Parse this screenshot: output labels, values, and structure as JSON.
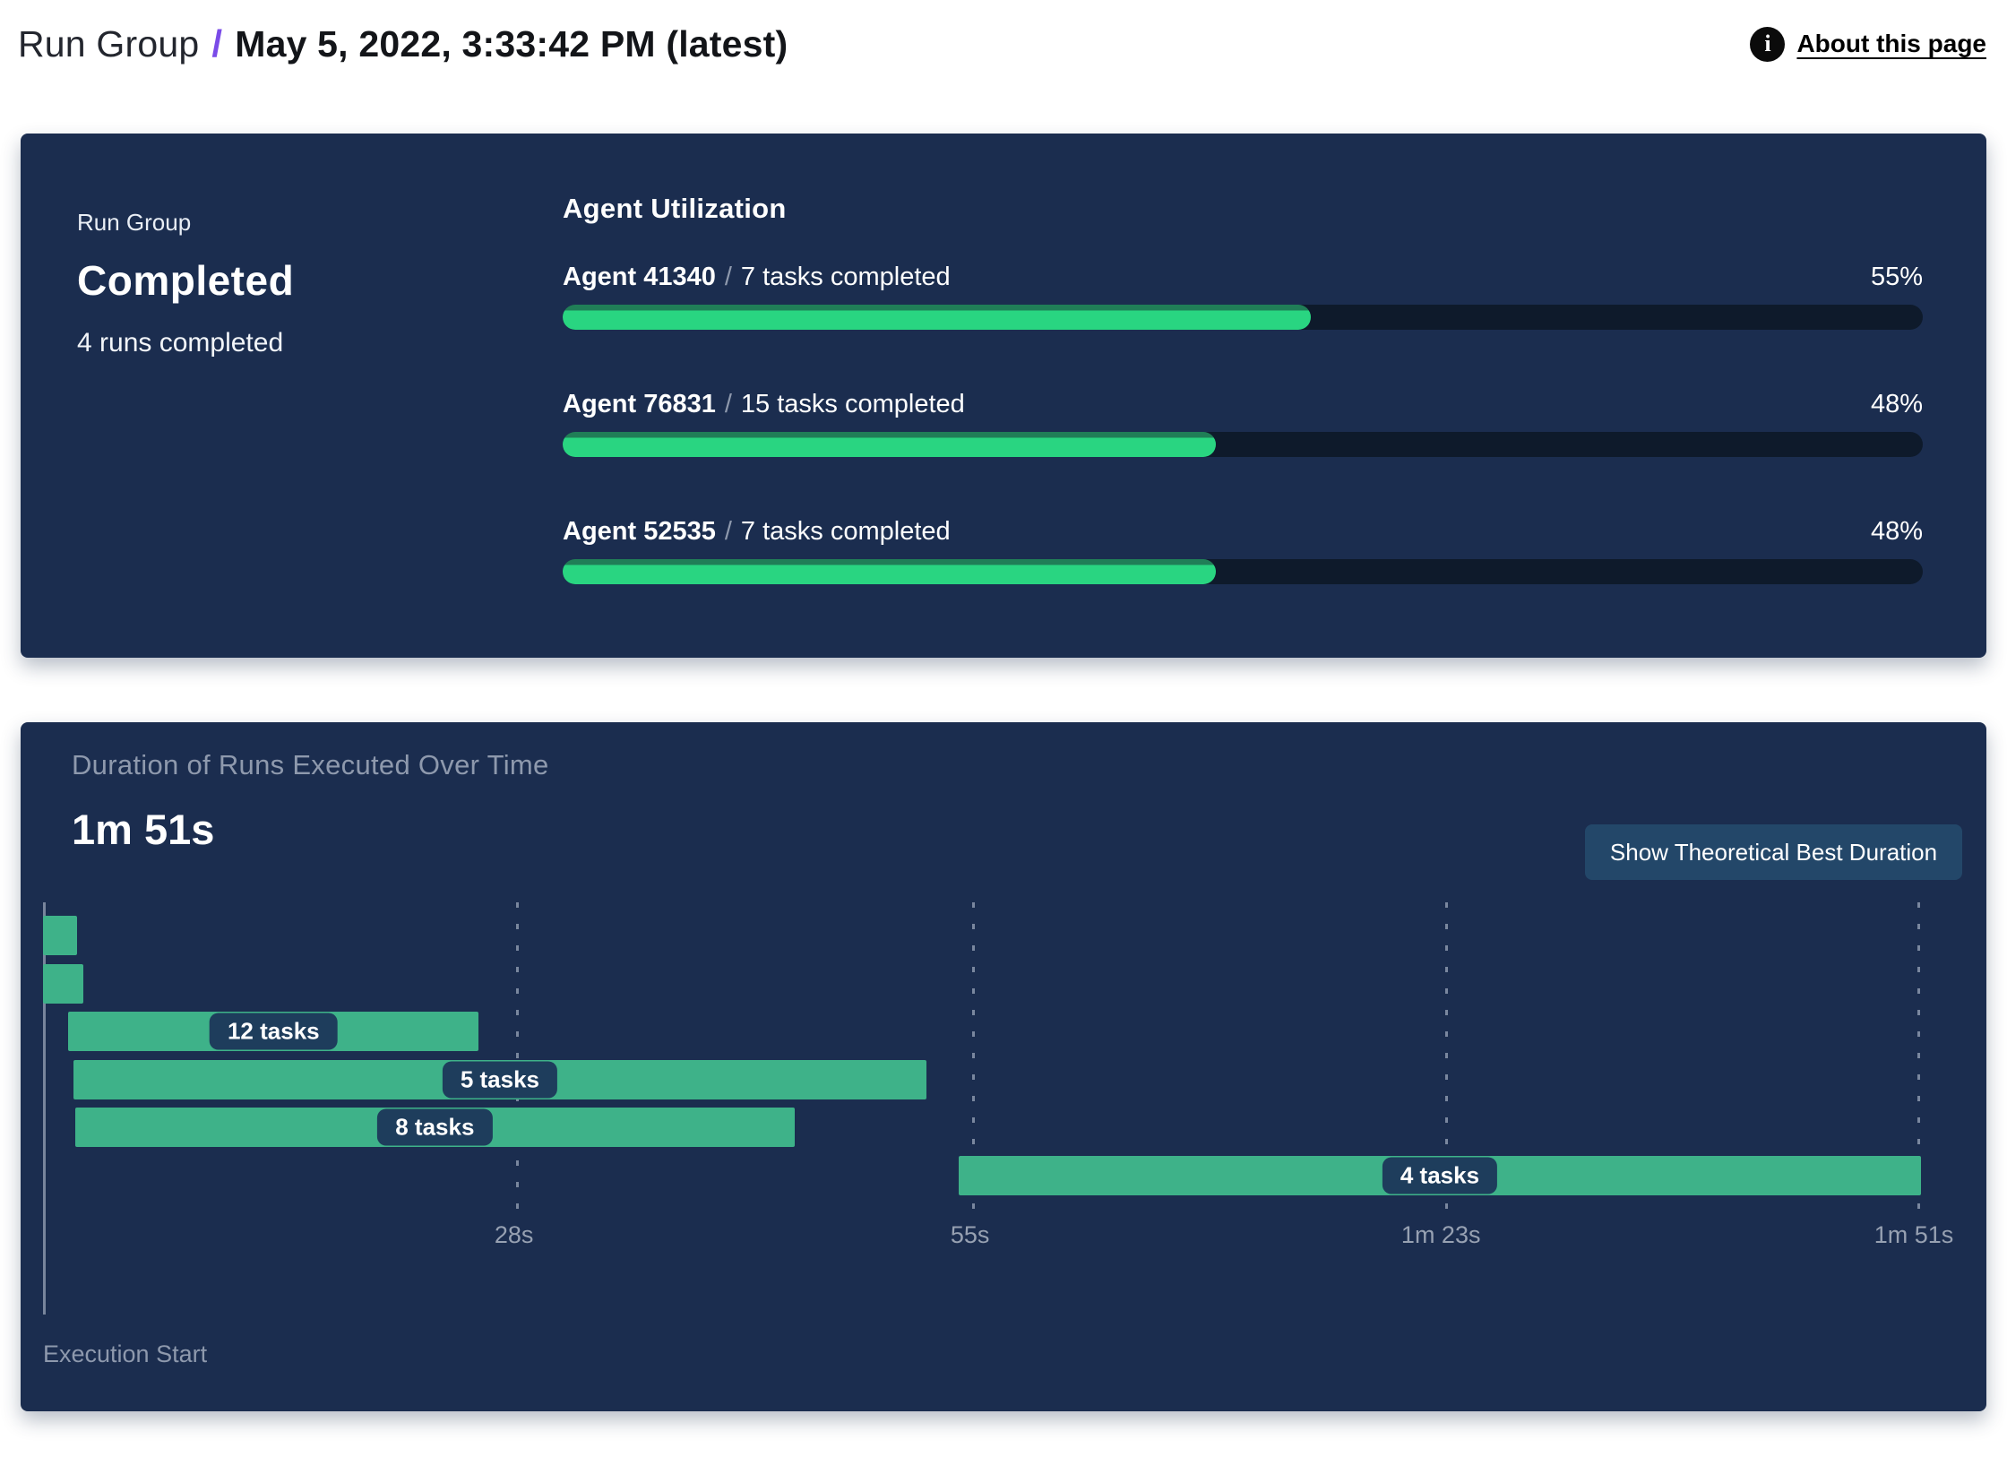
{
  "header": {
    "breadcrumb": "Run Group",
    "separator": "/",
    "title": "May 5, 2022, 3:33:42 PM (latest)",
    "about_label": "About this page",
    "info_icon_glyph": "i"
  },
  "status_card": {
    "label": "Run Group",
    "status": "Completed",
    "subtext": "4 runs completed"
  },
  "agent_utilization": {
    "heading": "Agent Utilization",
    "separator": "/",
    "agents": [
      {
        "name": "Agent 41340",
        "tasks": "7 tasks completed",
        "percent": 55,
        "percent_label": "55%"
      },
      {
        "name": "Agent 76831",
        "tasks": "15 tasks completed",
        "percent": 48,
        "percent_label": "48%"
      },
      {
        "name": "Agent 52535",
        "tasks": "7 tasks completed",
        "percent": 48,
        "percent_label": "48%"
      }
    ]
  },
  "duration_panel": {
    "title": "Duration of Runs Executed Over Time",
    "total_label": "1m 51s",
    "button_label": "Show Theoretical Best Duration",
    "axis_label": "Execution Start"
  },
  "chart_data": {
    "type": "gantt",
    "title": "Duration of Runs Executed Over Time",
    "total_duration_label": "1m 51s",
    "xlabel": "Execution Start",
    "axis_max_seconds": 111.4,
    "grid": true,
    "ticks": [
      {
        "label": "28s",
        "seconds": 28
      },
      {
        "label": "55s",
        "seconds": 55
      },
      {
        "label": "1m 23s",
        "seconds": 83
      },
      {
        "label": "1m 51s",
        "seconds": 111
      }
    ],
    "runs": [
      {
        "label": "",
        "start_s": 0,
        "end_s": 2.0
      },
      {
        "label": "",
        "start_s": 0,
        "end_s": 2.4
      },
      {
        "label": "12 tasks",
        "start_s": 1.5,
        "end_s": 25.8
      },
      {
        "label": "5 tasks",
        "start_s": 1.8,
        "end_s": 52.3
      },
      {
        "label": "8 tasks",
        "start_s": 1.9,
        "end_s": 44.5
      },
      {
        "label": "4 tasks",
        "start_s": 54.2,
        "end_s": 111.2
      }
    ]
  },
  "colors": {
    "panel_bg": "#1b2d4f",
    "accent_slash": "#7a4be8",
    "progress_green": "#29d581",
    "progress_green_edge": "#207e57",
    "progress_track": "#0e1a2b",
    "gantt_green": "#3eb289",
    "chip_bg": "#1e3d5c",
    "button_bg": "#234769",
    "muted_text": "#8e99ad"
  }
}
